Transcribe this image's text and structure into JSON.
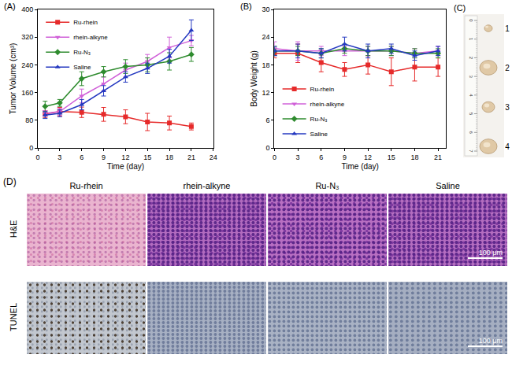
{
  "chart_data": [
    {
      "type": "line",
      "title": "(A)",
      "x_label": "Time (day)",
      "y_label": "Tumor Volume (cm³)",
      "x": [
        1,
        3,
        6,
        9,
        12,
        15,
        18,
        21
      ],
      "xlim": [
        0,
        24
      ],
      "xticks": [
        0,
        3,
        6,
        9,
        12,
        15,
        18,
        21,
        24
      ],
      "ylim": [
        0,
        400
      ],
      "yticks": [
        0,
        80,
        160,
        240,
        320,
        400
      ],
      "legend": "upper left",
      "series": [
        {
          "name": "Ru-rhein",
          "color": "#e62a2a",
          "marker": "square",
          "line_style": "solid",
          "values": [
            98,
            105,
            103,
            97,
            90,
            75,
            72,
            62
          ],
          "errors": [
            10,
            12,
            15,
            20,
            20,
            25,
            20,
            10
          ]
        },
        {
          "name": "rhein-alkyne",
          "color": "#d060d8",
          "marker": "triangle-down",
          "line_style": "solid",
          "values": [
            100,
            105,
            150,
            185,
            225,
            250,
            290,
            310
          ],
          "errors": [
            8,
            10,
            20,
            20,
            20,
            20,
            30,
            15
          ]
        },
        {
          "name": "Ru-N₃",
          "color": "#2e8b2e",
          "marker": "diamond",
          "line_style": "solid",
          "values": [
            120,
            130,
            200,
            220,
            235,
            240,
            250,
            270
          ],
          "errors": [
            15,
            10,
            20,
            15,
            20,
            20,
            25,
            20
          ]
        },
        {
          "name": "Saline",
          "color": "#2438c0",
          "marker": "triangle-up",
          "line_style": "solid",
          "values": [
            95,
            100,
            125,
            165,
            205,
            230,
            265,
            340
          ],
          "errors": [
            10,
            10,
            15,
            15,
            15,
            15,
            20,
            30
          ]
        }
      ]
    },
    {
      "type": "line",
      "title": "(B)",
      "x_label": "Time (day)",
      "y_label": "Body Weight (g)",
      "x": [
        0,
        3,
        6,
        9,
        12,
        15,
        18,
        21
      ],
      "xlim": [
        0,
        22
      ],
      "xticks": [
        0,
        3,
        6,
        9,
        12,
        15,
        18,
        21
      ],
      "ylim": [
        0,
        30
      ],
      "yticks": [
        0,
        6,
        12,
        18,
        24,
        30
      ],
      "legend": "lower left",
      "series": [
        {
          "name": "Ru-rhein",
          "color": "#e62a2a",
          "marker": "square",
          "line_style": "solid",
          "values": [
            20.5,
            20.5,
            18.5,
            17,
            18,
            16.5,
            17.5,
            17.5
          ],
          "errors": [
            1,
            2,
            2,
            1.5,
            2,
            3,
            3,
            2
          ]
        },
        {
          "name": "rhein-alkyne",
          "color": "#d060d8",
          "marker": "triangle-down",
          "line_style": "solid",
          "values": [
            21.5,
            21,
            21,
            21,
            21,
            21,
            20.5,
            21
          ],
          "errors": [
            1.5,
            2,
            1,
            1,
            1,
            1,
            1,
            1
          ]
        },
        {
          "name": "Ru-N₃",
          "color": "#2e8b2e",
          "marker": "diamond",
          "line_style": "solid",
          "values": [
            21,
            21,
            20.5,
            21.5,
            21,
            21,
            20.5,
            20.5
          ],
          "errors": [
            1,
            1,
            1,
            1,
            1,
            1,
            1,
            1
          ]
        },
        {
          "name": "Saline",
          "color": "#2438c0",
          "marker": "triangle-up",
          "line_style": "solid",
          "values": [
            21,
            21,
            20.5,
            22.5,
            21,
            21.5,
            20,
            21
          ],
          "errors": [
            1,
            1.5,
            1,
            1.5,
            1.5,
            1,
            1,
            1
          ]
        }
      ]
    }
  ],
  "photo": {
    "label": "(C)",
    "ruler_numbers": [
      "0",
      "1",
      "2",
      "3",
      "4",
      "5",
      "6",
      "7"
    ],
    "samples": [
      "1",
      "2",
      "3",
      "4"
    ]
  },
  "histology": {
    "label": "(D)",
    "columns": [
      "Ru-rhein",
      "rhein-alkyne",
      "Ru-N₃",
      "Saline"
    ],
    "rows": [
      "H&E",
      "TUNEL"
    ],
    "scale_bar": "100 μm"
  }
}
